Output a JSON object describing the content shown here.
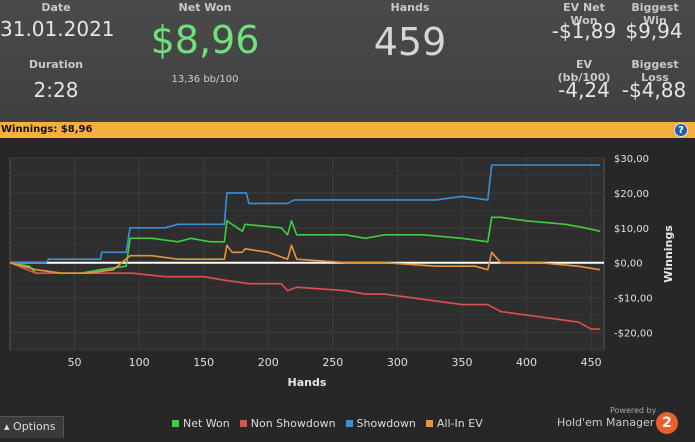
{
  "header": {
    "date_label": "Date",
    "date_value": "31.01.2021",
    "duration_label": "Duration",
    "duration_value": "2:28",
    "netwon_label": "Net Won",
    "netwon_value": "$8,96",
    "netwon_bb": "13,36 bb/100",
    "hands_label": "Hands",
    "hands_value": "459",
    "ev_netwon_label": "EV Net Won",
    "ev_netwon_value": "-$1,89",
    "biggest_win_label": "Biggest Win",
    "biggest_win_value": "$9,94",
    "ev_bb_label": "EV (bb/100)",
    "ev_bb_value": "-4,24",
    "biggest_loss_label": "Biggest Loss",
    "biggest_loss_value": "-$4,88"
  },
  "banner": {
    "text": "Winnings: $8,96",
    "help_glyph": "?"
  },
  "footer": {
    "options_glyph": "▴",
    "options_label": "Options",
    "powered": "Powered by",
    "brand": "Hold'em Manager",
    "brand_num": "2"
  },
  "legend": [
    {
      "label": "Net Won",
      "color": "#3ecf3e"
    },
    {
      "label": "Non Showdown",
      "color": "#e05050"
    },
    {
      "label": "Showdown",
      "color": "#3c90d8"
    },
    {
      "label": "All-In EV",
      "color": "#e8943a"
    }
  ],
  "chart_data": {
    "type": "line",
    "xlabel": "Hands",
    "ylabel": "Winnings",
    "xlim": [
      0,
      460
    ],
    "ylim": [
      -25,
      30
    ],
    "x_ticks": [
      50,
      100,
      150,
      200,
      250,
      300,
      350,
      400,
      450
    ],
    "y_ticks": [
      30,
      20,
      10,
      0,
      -10,
      -20
    ],
    "y_tick_labels": [
      "$30,00",
      "$20,00",
      "$10,00",
      "$0,00",
      "-$10,00",
      "-$20,00"
    ],
    "grid": true,
    "series": [
      {
        "name": "Net Won",
        "color": "#3ecf3e",
        "points": [
          [
            0,
            0
          ],
          [
            15,
            -1
          ],
          [
            20,
            -3
          ],
          [
            40,
            -3
          ],
          [
            55,
            -3
          ],
          [
            70,
            -2
          ],
          [
            90,
            -1
          ],
          [
            93,
            7
          ],
          [
            110,
            7
          ],
          [
            130,
            6
          ],
          [
            140,
            7
          ],
          [
            155,
            6
          ],
          [
            166,
            6
          ],
          [
            168,
            12
          ],
          [
            172,
            11
          ],
          [
            180,
            9
          ],
          [
            182,
            11
          ],
          [
            210,
            10
          ],
          [
            215,
            8
          ],
          [
            218,
            12
          ],
          [
            222,
            8
          ],
          [
            260,
            8
          ],
          [
            275,
            7
          ],
          [
            290,
            8
          ],
          [
            320,
            8
          ],
          [
            350,
            7
          ],
          [
            370,
            6
          ],
          [
            373,
            13
          ],
          [
            380,
            13
          ],
          [
            400,
            12
          ],
          [
            430,
            11
          ],
          [
            445,
            10
          ],
          [
            457,
            9
          ]
        ]
      },
      {
        "name": "Non Showdown",
        "color": "#e05050",
        "points": [
          [
            0,
            0
          ],
          [
            20,
            -3
          ],
          [
            50,
            -3
          ],
          [
            70,
            -3
          ],
          [
            95,
            -3
          ],
          [
            120,
            -4
          ],
          [
            150,
            -4
          ],
          [
            166,
            -5
          ],
          [
            185,
            -6
          ],
          [
            210,
            -6
          ],
          [
            215,
            -8
          ],
          [
            222,
            -7
          ],
          [
            260,
            -8
          ],
          [
            275,
            -9
          ],
          [
            290,
            -9
          ],
          [
            310,
            -10
          ],
          [
            330,
            -11
          ],
          [
            350,
            -12
          ],
          [
            370,
            -12
          ],
          [
            380,
            -14
          ],
          [
            400,
            -15
          ],
          [
            420,
            -16
          ],
          [
            440,
            -17
          ],
          [
            450,
            -19
          ],
          [
            457,
            -19
          ]
        ]
      },
      {
        "name": "Showdown",
        "color": "#3c90d8",
        "points": [
          [
            0,
            0
          ],
          [
            28,
            0
          ],
          [
            30,
            1
          ],
          [
            40,
            1
          ],
          [
            70,
            1
          ],
          [
            71,
            3
          ],
          [
            90,
            3
          ],
          [
            93,
            10
          ],
          [
            110,
            10
          ],
          [
            120,
            10
          ],
          [
            130,
            11
          ],
          [
            166,
            11
          ],
          [
            168,
            20
          ],
          [
            183,
            20
          ],
          [
            185,
            17
          ],
          [
            215,
            17
          ],
          [
            220,
            18
          ],
          [
            260,
            18
          ],
          [
            300,
            18
          ],
          [
            330,
            18
          ],
          [
            350,
            19
          ],
          [
            370,
            18
          ],
          [
            373,
            28
          ],
          [
            400,
            28
          ],
          [
            430,
            28
          ],
          [
            457,
            28
          ]
        ]
      },
      {
        "name": "All-In EV",
        "color": "#e8943a",
        "points": [
          [
            0,
            0
          ],
          [
            20,
            -2
          ],
          [
            40,
            -3
          ],
          [
            60,
            -3
          ],
          [
            80,
            -2
          ],
          [
            93,
            2
          ],
          [
            110,
            2
          ],
          [
            130,
            1
          ],
          [
            160,
            1
          ],
          [
            166,
            1
          ],
          [
            168,
            5
          ],
          [
            172,
            3
          ],
          [
            180,
            3
          ],
          [
            182,
            4
          ],
          [
            200,
            3
          ],
          [
            215,
            1
          ],
          [
            218,
            5
          ],
          [
            222,
            1
          ],
          [
            260,
            0
          ],
          [
            290,
            0
          ],
          [
            330,
            -1
          ],
          [
            360,
            -1
          ],
          [
            370,
            -2
          ],
          [
            373,
            3
          ],
          [
            380,
            0
          ],
          [
            410,
            0
          ],
          [
            440,
            -1
          ],
          [
            457,
            -2
          ]
        ]
      }
    ]
  }
}
